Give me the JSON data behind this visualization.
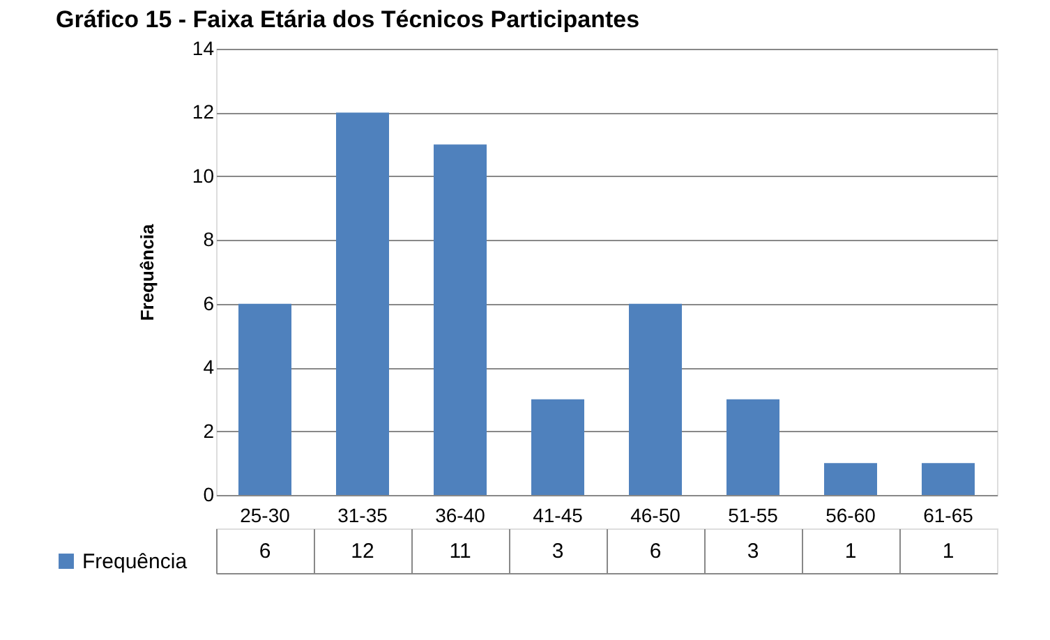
{
  "chart_data": {
    "type": "bar",
    "title": "Gráfico 15 - Faixa Etária dos Técnicos Participantes",
    "ylabel": "Frequência",
    "categories": [
      "25-30",
      "31-35",
      "36-40",
      "41-45",
      "46-50",
      "51-55",
      "56-60",
      "61-65"
    ],
    "series": [
      {
        "name": "Frequência",
        "color": "#4f81bd",
        "values": [
          6,
          12,
          11,
          3,
          6,
          3,
          1,
          1
        ]
      }
    ],
    "ylim": [
      0,
      14
    ],
    "yticks": [
      0,
      2,
      4,
      6,
      8,
      10,
      12,
      14
    ],
    "grid": "y",
    "legend": "bottom left",
    "data_labels": true
  }
}
